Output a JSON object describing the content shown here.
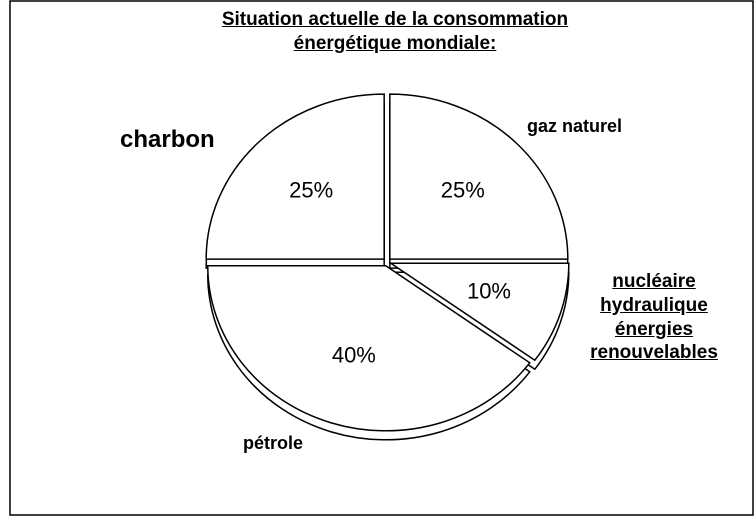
{
  "chart_data": {
    "type": "pie",
    "title": "Situation actuelle de la consommation énergétique mondiale:",
    "categories": [
      "gaz naturel",
      "nucléaire hydraulique énergies renouvelables",
      "pétrole",
      "charbon"
    ],
    "values": [
      25,
      10,
      40,
      25
    ],
    "value_labels": [
      "25%",
      "10%",
      "40%",
      "25%"
    ],
    "color": "#ffffff"
  }
}
